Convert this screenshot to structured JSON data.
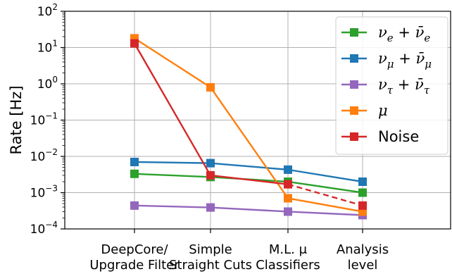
{
  "chart_data": {
    "type": "line",
    "title": "",
    "xlabel": "",
    "ylabel": "Rate [Hz]",
    "yscale": "log",
    "ylim": [
      0.0001,
      100
    ],
    "yticks": [
      {
        "value": 100,
        "base": "10",
        "exp": "2"
      },
      {
        "value": 10,
        "base": "10",
        "exp": "1"
      },
      {
        "value": 1,
        "base": "10",
        "exp": "0"
      },
      {
        "value": 0.1,
        "base": "10",
        "exp": "−1"
      },
      {
        "value": 0.01,
        "base": "10",
        "exp": "−2"
      },
      {
        "value": 0.001,
        "base": "10",
        "exp": "−3"
      },
      {
        "value": 0.0001,
        "base": "10",
        "exp": "−4"
      }
    ],
    "categories": [
      [
        "DeepCore/",
        "Upgrade Filter"
      ],
      [
        "Simple",
        "Straight Cuts"
      ],
      [
        "M.L. μ",
        "Classifiers"
      ],
      [
        "Analysis",
        "level"
      ]
    ],
    "grid": true,
    "legend_position": "top-right",
    "series": [
      {
        "name_parts": [
          "ν",
          "e",
          " + ",
          "ν̄",
          "e"
        ],
        "color": "#2ca02c",
        "values": [
          0.0033,
          0.0027,
          0.002,
          0.001
        ],
        "dashed_last_segment": false
      },
      {
        "name_parts": [
          "ν",
          "μ",
          " + ",
          "ν̄",
          "μ"
        ],
        "color": "#1f77b4",
        "values": [
          0.007,
          0.0065,
          0.0043,
          0.002
        ],
        "dashed_last_segment": false
      },
      {
        "name_parts": [
          "ν",
          "τ",
          " + ",
          "ν̄",
          "τ"
        ],
        "color": "#9467bd",
        "values": [
          0.00044,
          0.00039,
          0.0003,
          0.00024
        ],
        "dashed_last_segment": false
      },
      {
        "name_parts": [
          "μ"
        ],
        "color": "#ff7f0e",
        "values": [
          18,
          0.8,
          0.0007,
          0.0003
        ],
        "dashed_last_segment": false
      },
      {
        "name_parts": [
          "Noise"
        ],
        "color": "#d62728",
        "values": [
          13,
          0.003,
          0.0017,
          0.00044
        ],
        "dashed_last_segment": true
      }
    ]
  }
}
